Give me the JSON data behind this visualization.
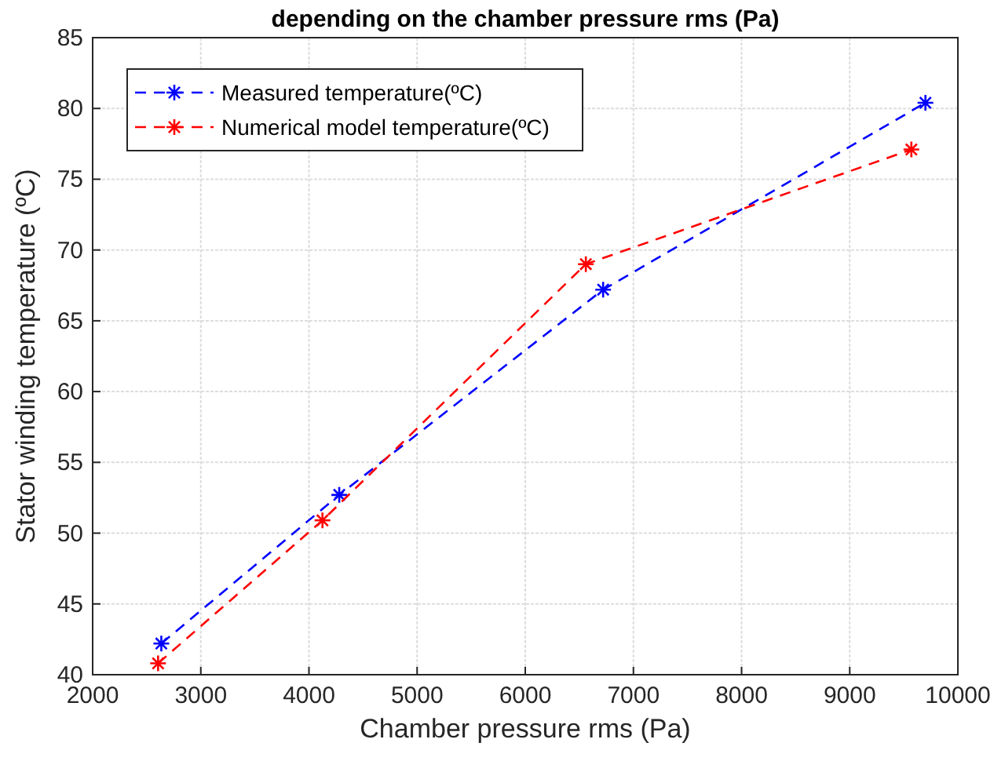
{
  "chart_data": {
    "type": "line",
    "title": "depending on the chamber pressure rms (Pa)",
    "xlabel": "Chamber pressure rms (Pa)",
    "ylabel": "Stator winding temperature (ºC)",
    "xlim": [
      2000,
      10000
    ],
    "xticks": [
      2000,
      3000,
      4000,
      5000,
      6000,
      7000,
      8000,
      9000,
      10000
    ],
    "ylim": [
      40,
      85
    ],
    "yticks": [
      40,
      45,
      50,
      55,
      60,
      65,
      70,
      75,
      80,
      85
    ],
    "grid": true,
    "legend": "top left",
    "marker": "cross",
    "line_style": "dashed",
    "series": [
      {
        "name": "Measured temperature(ºC)",
        "color": "#0000ff",
        "x": [
          2635,
          4280,
          6720,
          9700
        ],
        "values": [
          42.2,
          52.7,
          67.2,
          80.4
        ]
      },
      {
        "name": "Numerical model temperature(ºC)",
        "color": "#ff0000",
        "x": [
          2605,
          4125,
          6560,
          9570
        ],
        "values": [
          40.8,
          50.9,
          69.0,
          77.1
        ]
      }
    ]
  }
}
